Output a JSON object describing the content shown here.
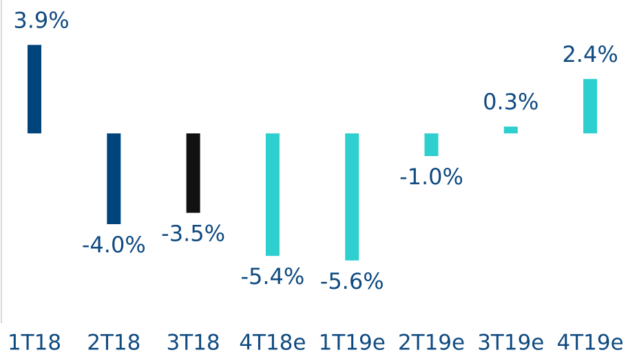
{
  "chart_data": {
    "type": "bar",
    "categories": [
      "1T18",
      "2T18",
      "3T18",
      "4T18e",
      "1T19e",
      "2T19e",
      "3T19e",
      "4T19e"
    ],
    "values": [
      3.9,
      -4.0,
      -3.5,
      -5.4,
      -5.6,
      -1.0,
      0.3,
      2.4
    ],
    "value_labels": [
      "3.9%",
      "-4.0%",
      "-3.5%",
      "-5.4%",
      "-5.6%",
      "-1.0%",
      "0.3%",
      "2.4%"
    ],
    "colors": [
      "#00447c",
      "#00447c",
      "#111111",
      "#2ecfcf",
      "#2ecfcf",
      "#2ecfcf",
      "#2ecfcf",
      "#2ecfcf"
    ]
  }
}
